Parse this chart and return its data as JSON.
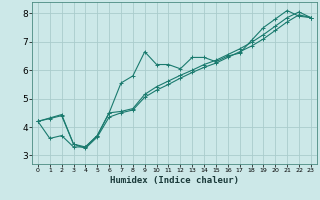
{
  "xlabel": "Humidex (Indice chaleur)",
  "bg_color": "#cce8e8",
  "grid_color": "#aacccc",
  "line_color": "#1a7a6e",
  "xlim": [
    -0.5,
    23.5
  ],
  "ylim": [
    2.7,
    8.4
  ],
  "xticks": [
    0,
    1,
    2,
    3,
    4,
    5,
    6,
    7,
    8,
    9,
    10,
    11,
    12,
    13,
    14,
    15,
    16,
    17,
    18,
    19,
    20,
    21,
    22,
    23
  ],
  "yticks": [
    3,
    4,
    5,
    6,
    7,
    8
  ],
  "line1_x": [
    0,
    1,
    2,
    3,
    4,
    5,
    6,
    7,
    8,
    9,
    10,
    11,
    12,
    13,
    14,
    15,
    16,
    17,
    18,
    19,
    20,
    21,
    22,
    23
  ],
  "line1_y": [
    4.2,
    3.6,
    3.7,
    3.3,
    3.3,
    3.7,
    4.5,
    5.55,
    5.8,
    6.65,
    6.2,
    6.2,
    6.05,
    6.45,
    6.45,
    6.3,
    6.5,
    6.6,
    7.05,
    7.5,
    7.8,
    8.1,
    7.9,
    7.85
  ],
  "line2_x": [
    0,
    1,
    2,
    3,
    4,
    5,
    6,
    7,
    8,
    9,
    10,
    11,
    12,
    13,
    14,
    15,
    16,
    17,
    18,
    19,
    20,
    21,
    22,
    23
  ],
  "line2_y": [
    4.2,
    4.3,
    4.4,
    3.4,
    3.25,
    3.65,
    4.35,
    4.5,
    4.6,
    5.05,
    5.3,
    5.5,
    5.72,
    5.92,
    6.1,
    6.25,
    6.45,
    6.65,
    6.85,
    7.1,
    7.4,
    7.7,
    7.95,
    7.85
  ],
  "line3_x": [
    0,
    1,
    2,
    3,
    4,
    5,
    6,
    7,
    8,
    9,
    10,
    11,
    12,
    13,
    14,
    15,
    16,
    17,
    18,
    19,
    20,
    21,
    22,
    23
  ],
  "line3_y": [
    4.2,
    4.32,
    4.44,
    3.4,
    3.3,
    3.7,
    4.5,
    4.55,
    4.65,
    5.15,
    5.42,
    5.62,
    5.82,
    6.0,
    6.2,
    6.35,
    6.55,
    6.75,
    6.98,
    7.25,
    7.55,
    7.85,
    8.05,
    7.85
  ]
}
